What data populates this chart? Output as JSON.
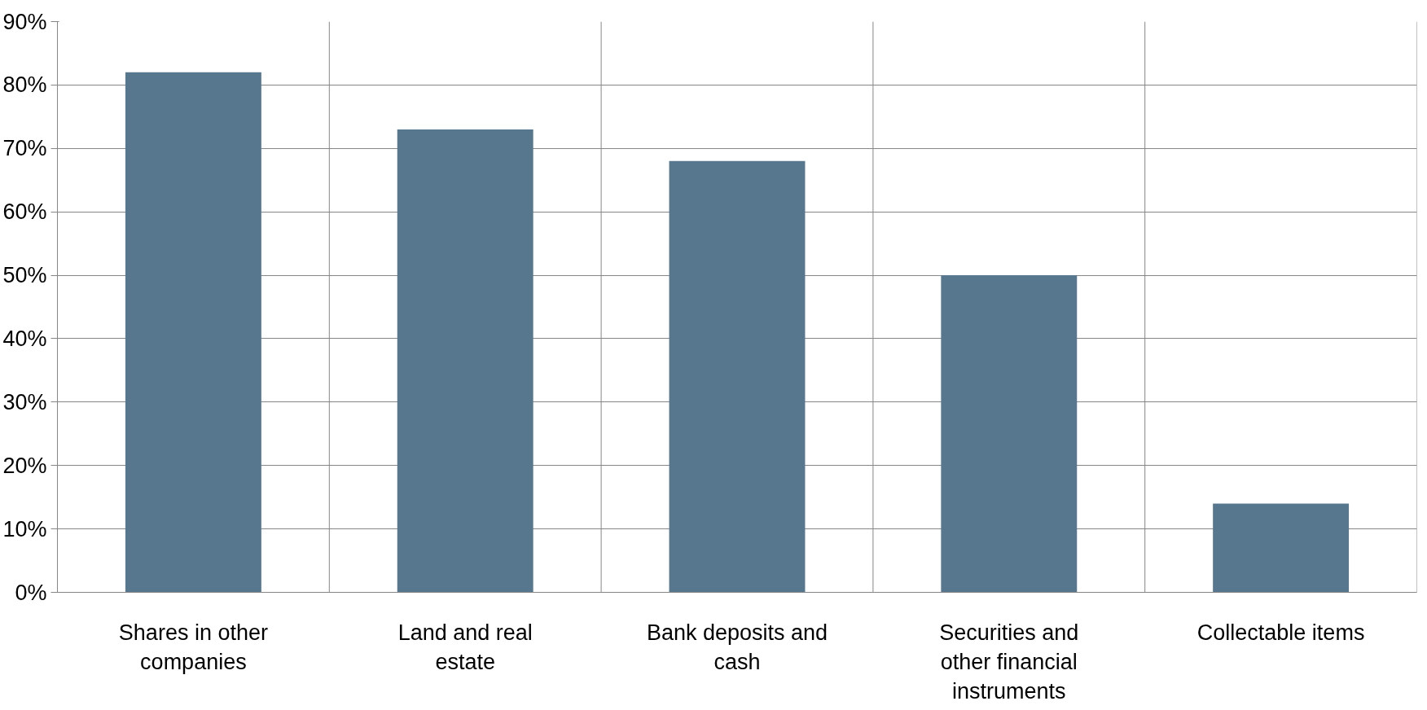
{
  "chart_data": {
    "type": "bar",
    "categories": [
      "Shares in other companies",
      "Land and real estate",
      "Bank deposits and cash",
      "Securities and other financial instruments",
      "Collectable items"
    ],
    "values": [
      82,
      73,
      68,
      50,
      14
    ],
    "color": "#57778f",
    "ylim": [
      0,
      90
    ],
    "yticks": [
      {
        "value": 0,
        "label": "0%"
      },
      {
        "value": 10,
        "label": "10%"
      },
      {
        "value": 20,
        "label": "20%"
      },
      {
        "value": 30,
        "label": "30%"
      },
      {
        "value": 40,
        "label": "40%"
      },
      {
        "value": 50,
        "label": "50%"
      },
      {
        "value": 60,
        "label": "60%"
      },
      {
        "value": 70,
        "label": "70%"
      },
      {
        "value": 80,
        "label": "80%"
      },
      {
        "value": 90,
        "label": "90%"
      }
    ],
    "grid": true
  }
}
